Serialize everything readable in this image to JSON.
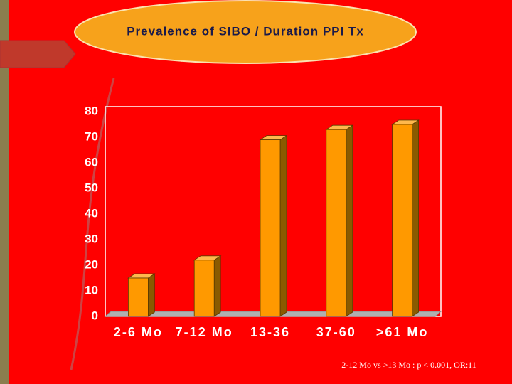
{
  "chart_data": {
    "type": "bar",
    "title": "Prevalence of SIBO / Duration PPI Tx",
    "categories": [
      "2-6 Mo",
      "7-12 Mo",
      "13-36",
      "37-60",
      ">61 Mo"
    ],
    "values": [
      15,
      22,
      69,
      73,
      75
    ],
    "color": "#ff9900",
    "ylim": [
      0,
      80
    ],
    "yticks": [
      0,
      10,
      20,
      30,
      40,
      50,
      60,
      70,
      80
    ],
    "grid": false,
    "annotation": "2-12 Mo vs >13 Mo : p < 0.001, OR:11"
  }
}
